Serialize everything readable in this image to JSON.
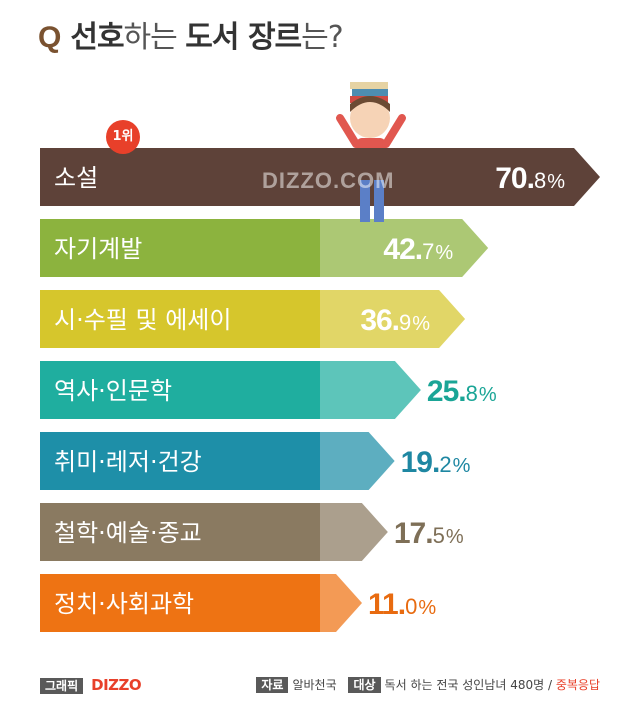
{
  "title": {
    "q": "Q",
    "p1": "선호",
    "p2": "하는 ",
    "p3": "도서 장르",
    "p4": "는?"
  },
  "badge": "1위",
  "watermark": "DIZZO.COM",
  "colors": [
    "#5e4239",
    "#8cb33e",
    "#d6c62c",
    "#1fae9f",
    "#1e8fa8",
    "#8a7a61",
    "#ee7313"
  ],
  "chart_data": {
    "type": "bar",
    "categories": [
      "소설",
      "자기계발",
      "시·수필 및 에세이",
      "역사·인문학",
      "취미·레저·건강",
      "철학·예술·종교",
      "정치·사회과학"
    ],
    "values": [
      70.8,
      42.7,
      36.9,
      25.8,
      19.2,
      17.5,
      11.0
    ],
    "value_labels": [
      {
        "num": "70.",
        "dec": "8",
        "pct": "%"
      },
      {
        "num": "42.",
        "dec": "7",
        "pct": "%"
      },
      {
        "num": "36.",
        "dec": "9",
        "pct": "%"
      },
      {
        "num": "25.",
        "dec": "8",
        "pct": "%"
      },
      {
        "num": "19.",
        "dec": "2",
        "pct": "%"
      },
      {
        "num": "17.",
        "dec": "5",
        "pct": "%"
      },
      {
        "num": "11.",
        "dec": "0",
        "pct": "%"
      }
    ]
  },
  "footer": {
    "graphic_tag": "그래픽",
    "logo": "DIZZO",
    "source_tag": "자료",
    "source": "알바천국",
    "target_tag": "대상",
    "target": "독서 하는 전국 성인남녀 480명 / ",
    "multi": "중복응답"
  }
}
